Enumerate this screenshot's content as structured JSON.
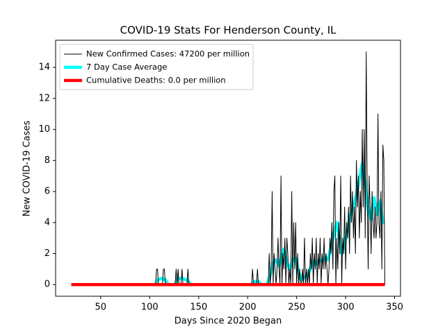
{
  "chart_data": {
    "type": "line",
    "title": "COVID-19 Stats For Henderson County, IL",
    "x_label": "Days Since 2020 Began",
    "y_label": "New COVID-19 Cases",
    "xlim": [
      4,
      356
    ],
    "ylim": [
      -0.75,
      15.75
    ],
    "xticks": [
      50,
      100,
      150,
      200,
      250,
      300,
      350
    ],
    "yticks": [
      0,
      2,
      4,
      6,
      8,
      10,
      12,
      14
    ],
    "legend": "upper left",
    "series": [
      {
        "name": "New Confirmed Cases: 47200 per million",
        "color": "#000000",
        "x": [
          20,
          106,
          107,
          108,
          109,
          113,
          114,
          115,
          116,
          126,
          127,
          128,
          129,
          130,
          132,
          133,
          134,
          138,
          139,
          140,
          204,
          205,
          206,
          209,
          210,
          211,
          221,
          222,
          223,
          224,
          225,
          226,
          227,
          228,
          229,
          230,
          231,
          232,
          233,
          234,
          235,
          236,
          237,
          238,
          239,
          240,
          241,
          242,
          243,
          244,
          245,
          246,
          247,
          248,
          249,
          250,
          251,
          252,
          253,
          254,
          255,
          256,
          257,
          258,
          259,
          260,
          261,
          262,
          263,
          264,
          265,
          266,
          267,
          268,
          269,
          270,
          271,
          272,
          273,
          274,
          275,
          276,
          277,
          278,
          279,
          280,
          281,
          282,
          283,
          284,
          285,
          286,
          287,
          288,
          289,
          290,
          291,
          292,
          293,
          294,
          295,
          296,
          297,
          298,
          299,
          300,
          301,
          302,
          303,
          304,
          305,
          306,
          307,
          308,
          309,
          310,
          311,
          312,
          313,
          314,
          315,
          316,
          317,
          318,
          319,
          320,
          321,
          322,
          323,
          324,
          325,
          326,
          327,
          328,
          329,
          330,
          331,
          332,
          333,
          334,
          335,
          336,
          337,
          338,
          339,
          340
        ],
        "values": [
          0,
          0,
          1,
          1,
          0,
          0,
          1,
          1,
          0,
          0,
          1,
          0,
          1,
          0,
          0,
          1,
          0,
          0,
          1,
          0,
          0,
          1,
          0,
          0,
          1,
          0,
          0,
          2,
          0,
          1,
          6,
          0,
          2,
          1,
          0,
          1,
          3,
          1,
          0,
          7,
          0,
          2,
          1,
          3,
          0,
          3,
          2,
          0,
          1,
          0,
          6,
          0,
          4,
          1,
          4,
          0,
          2,
          0,
          1,
          0,
          0,
          1,
          0,
          3,
          0,
          1,
          0,
          1,
          0,
          2,
          1,
          3,
          0,
          2,
          1,
          3,
          0,
          2,
          1,
          3,
          0,
          2,
          1,
          3,
          1,
          2,
          1,
          0,
          1,
          3,
          2,
          4,
          1,
          6,
          7,
          0,
          3,
          1,
          4,
          2,
          7,
          0,
          3,
          2,
          5,
          1,
          4,
          3,
          5,
          2,
          7,
          4,
          6,
          3,
          5,
          2,
          8,
          5,
          7,
          3,
          6,
          4,
          10,
          5,
          10,
          3,
          15,
          6,
          1,
          7,
          5,
          2,
          6,
          4,
          3,
          5,
          3,
          4,
          11,
          4,
          3,
          6,
          1,
          9,
          8,
          0
        ]
      },
      {
        "name": "7 Day Case Average",
        "color": "#00ffff",
        "x": [
          20,
          106,
          108,
          112,
          116,
          119,
          126,
          129,
          133,
          138,
          142,
          204,
          207,
          211,
          214,
          220,
          223,
          226,
          229,
          232,
          235,
          237,
          240,
          243,
          246,
          249,
          252,
          255,
          258,
          261,
          264,
          267,
          270,
          273,
          276,
          279,
          282,
          285,
          288,
          291,
          293,
          296,
          299,
          302,
          305,
          308,
          311,
          314,
          317,
          320,
          323,
          326,
          329,
          332,
          335,
          338,
          340
        ],
        "values": [
          0,
          0,
          0.3,
          0.4,
          0.3,
          0,
          0,
          0.4,
          0.4,
          0.3,
          0,
          0,
          0.2,
          0.2,
          0,
          0,
          0.6,
          1.4,
          1.6,
          1.2,
          1.9,
          2.3,
          1.4,
          1.0,
          1.6,
          1.7,
          0.8,
          0.3,
          0.5,
          0.6,
          1.0,
          1.5,
          1.3,
          1.6,
          1.5,
          1.8,
          1.6,
          2.4,
          3.3,
          4.0,
          3.2,
          2.0,
          2.6,
          3.6,
          4.5,
          5.0,
          5.8,
          6.8,
          7.8,
          6.5,
          4.8,
          4.2,
          5.6,
          4.5,
          5.4,
          4.0,
          4.0
        ]
      },
      {
        "name": "Cumulative Deaths: 0.0 per million",
        "color": "#ff0000",
        "x": [
          20,
          340
        ],
        "values": [
          0.0,
          0.0
        ]
      }
    ]
  }
}
